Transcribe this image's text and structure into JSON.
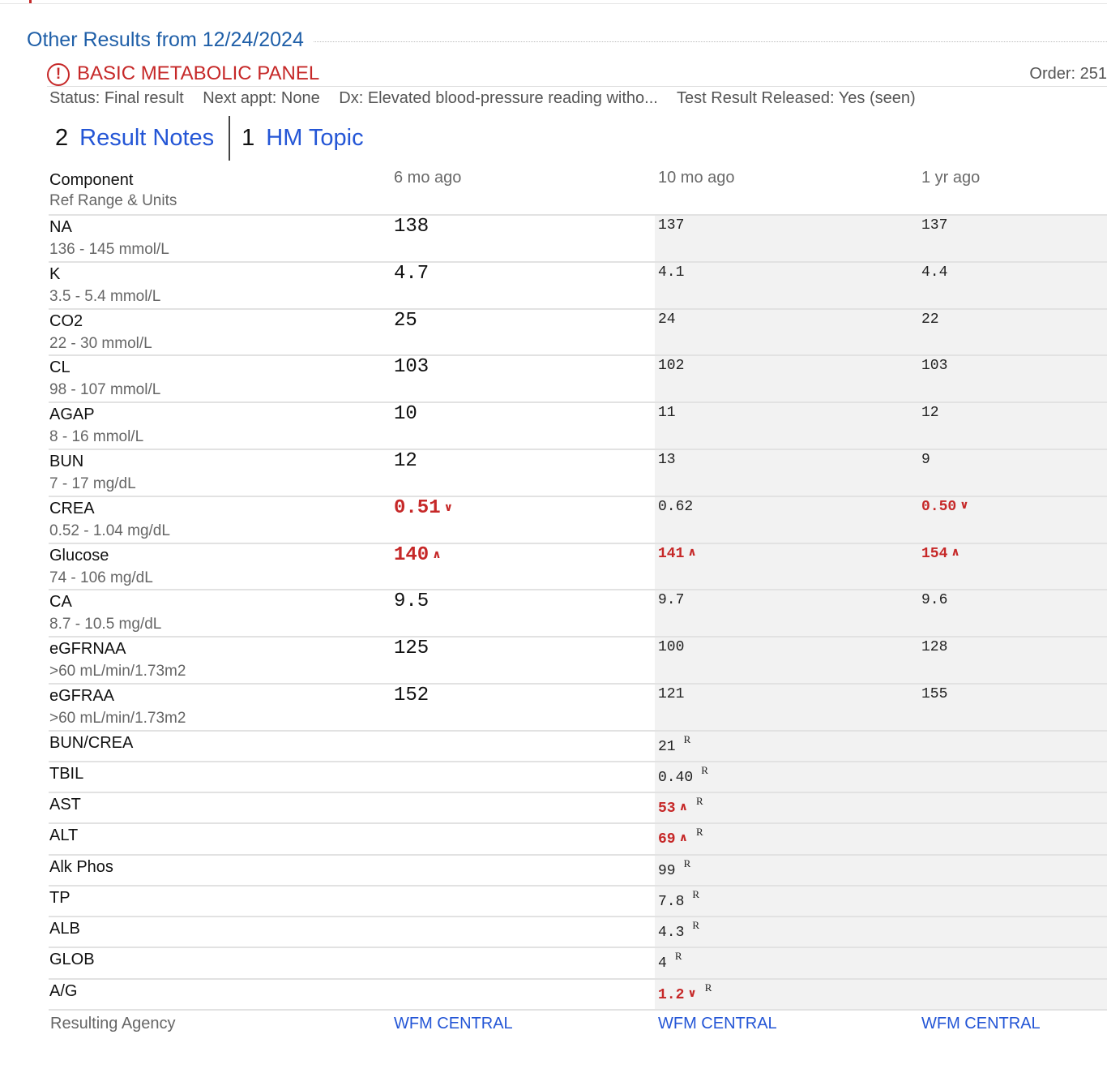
{
  "section": {
    "title": "Other Results from 12/24/2024"
  },
  "panel": {
    "title": "BASIC METABOLIC PANEL",
    "order": "Order: 251",
    "status": "Status: Final result",
    "next_appt": "Next appt: None",
    "dx": "Dx: Elevated blood-pressure reading witho...",
    "released": "Test Result Released: Yes (seen)"
  },
  "tabs": [
    {
      "count": "2",
      "label": "Result Notes"
    },
    {
      "count": "1",
      "label": "HM Topic"
    }
  ],
  "table": {
    "component_header": "Component",
    "range_header": "Ref Range & Units",
    "columns": [
      "6 mo ago",
      "10 mo ago",
      "1 yr ago"
    ],
    "rows": [
      {
        "name": "NA",
        "range": "136 - 145 mmol/L",
        "values": [
          {
            "v": "138"
          },
          {
            "v": "137"
          },
          {
            "v": "137"
          }
        ]
      },
      {
        "name": "K",
        "range": "3.5 - 5.4 mmol/L",
        "values": [
          {
            "v": "4.7"
          },
          {
            "v": "4.1"
          },
          {
            "v": "4.4"
          }
        ]
      },
      {
        "name": "CO2",
        "range": "22 - 30 mmol/L",
        "values": [
          {
            "v": "25"
          },
          {
            "v": "24"
          },
          {
            "v": "22"
          }
        ]
      },
      {
        "name": "CL",
        "range": "98 - 107 mmol/L",
        "values": [
          {
            "v": "103"
          },
          {
            "v": "102"
          },
          {
            "v": "103"
          }
        ]
      },
      {
        "name": "AGAP",
        "range": "8 - 16 mmol/L",
        "values": [
          {
            "v": "10"
          },
          {
            "v": "11"
          },
          {
            "v": "12"
          }
        ]
      },
      {
        "name": "BUN",
        "range": "7 - 17 mg/dL",
        "values": [
          {
            "v": "12"
          },
          {
            "v": "13"
          },
          {
            "v": "9"
          }
        ]
      },
      {
        "name": "CREA",
        "range": "0.52 - 1.04 mg/dL",
        "values": [
          {
            "v": "0.51",
            "flag": "low"
          },
          {
            "v": "0.62"
          },
          {
            "v": "0.50",
            "flag": "low"
          }
        ]
      },
      {
        "name": "Glucose",
        "range": "74 - 106 mg/dL",
        "values": [
          {
            "v": "140",
            "flag": "high"
          },
          {
            "v": "141",
            "flag": "high"
          },
          {
            "v": "154",
            "flag": "high"
          }
        ]
      },
      {
        "name": "CA",
        "range": "8.7 - 10.5 mg/dL",
        "values": [
          {
            "v": "9.5"
          },
          {
            "v": "9.7"
          },
          {
            "v": "9.6"
          }
        ]
      },
      {
        "name": "eGFRNAA",
        "range": ">60 mL/min/1.73m2",
        "values": [
          {
            "v": "125"
          },
          {
            "v": "100"
          },
          {
            "v": "128"
          }
        ]
      },
      {
        "name": "eGFRAA",
        "range": ">60 mL/min/1.73m2",
        "values": [
          {
            "v": "152"
          },
          {
            "v": "121"
          },
          {
            "v": "155"
          }
        ]
      },
      {
        "name": "BUN/CREA",
        "range": "",
        "values": [
          {
            "v": ""
          },
          {
            "v": "21",
            "note": "R"
          },
          {
            "v": ""
          }
        ]
      },
      {
        "name": "TBIL",
        "range": "",
        "values": [
          {
            "v": ""
          },
          {
            "v": "0.40",
            "note": "R"
          },
          {
            "v": ""
          }
        ]
      },
      {
        "name": "AST",
        "range": "",
        "values": [
          {
            "v": ""
          },
          {
            "v": "53",
            "flag": "high",
            "note": "R"
          },
          {
            "v": ""
          }
        ]
      },
      {
        "name": "ALT",
        "range": "",
        "values": [
          {
            "v": ""
          },
          {
            "v": "69",
            "flag": "high",
            "note": "R"
          },
          {
            "v": ""
          }
        ]
      },
      {
        "name": "Alk Phos",
        "range": "",
        "values": [
          {
            "v": ""
          },
          {
            "v": "99",
            "note": "R"
          },
          {
            "v": ""
          }
        ]
      },
      {
        "name": "TP",
        "range": "",
        "values": [
          {
            "v": ""
          },
          {
            "v": "7.8",
            "note": "R"
          },
          {
            "v": ""
          }
        ]
      },
      {
        "name": "ALB",
        "range": "",
        "values": [
          {
            "v": ""
          },
          {
            "v": "4.3",
            "note": "R"
          },
          {
            "v": ""
          }
        ]
      },
      {
        "name": "GLOB",
        "range": "",
        "values": [
          {
            "v": ""
          },
          {
            "v": "4",
            "note": "R"
          },
          {
            "v": ""
          }
        ]
      },
      {
        "name": "A/G",
        "range": "",
        "values": [
          {
            "v": ""
          },
          {
            "v": "1.2",
            "flag": "low",
            "note": "R"
          },
          {
            "v": ""
          }
        ]
      }
    ],
    "agency_label": "Resulting Agency",
    "agency_links": [
      "WFM CENTRAL",
      "WFM CENTRAL",
      "WFM CENTRAL"
    ]
  }
}
